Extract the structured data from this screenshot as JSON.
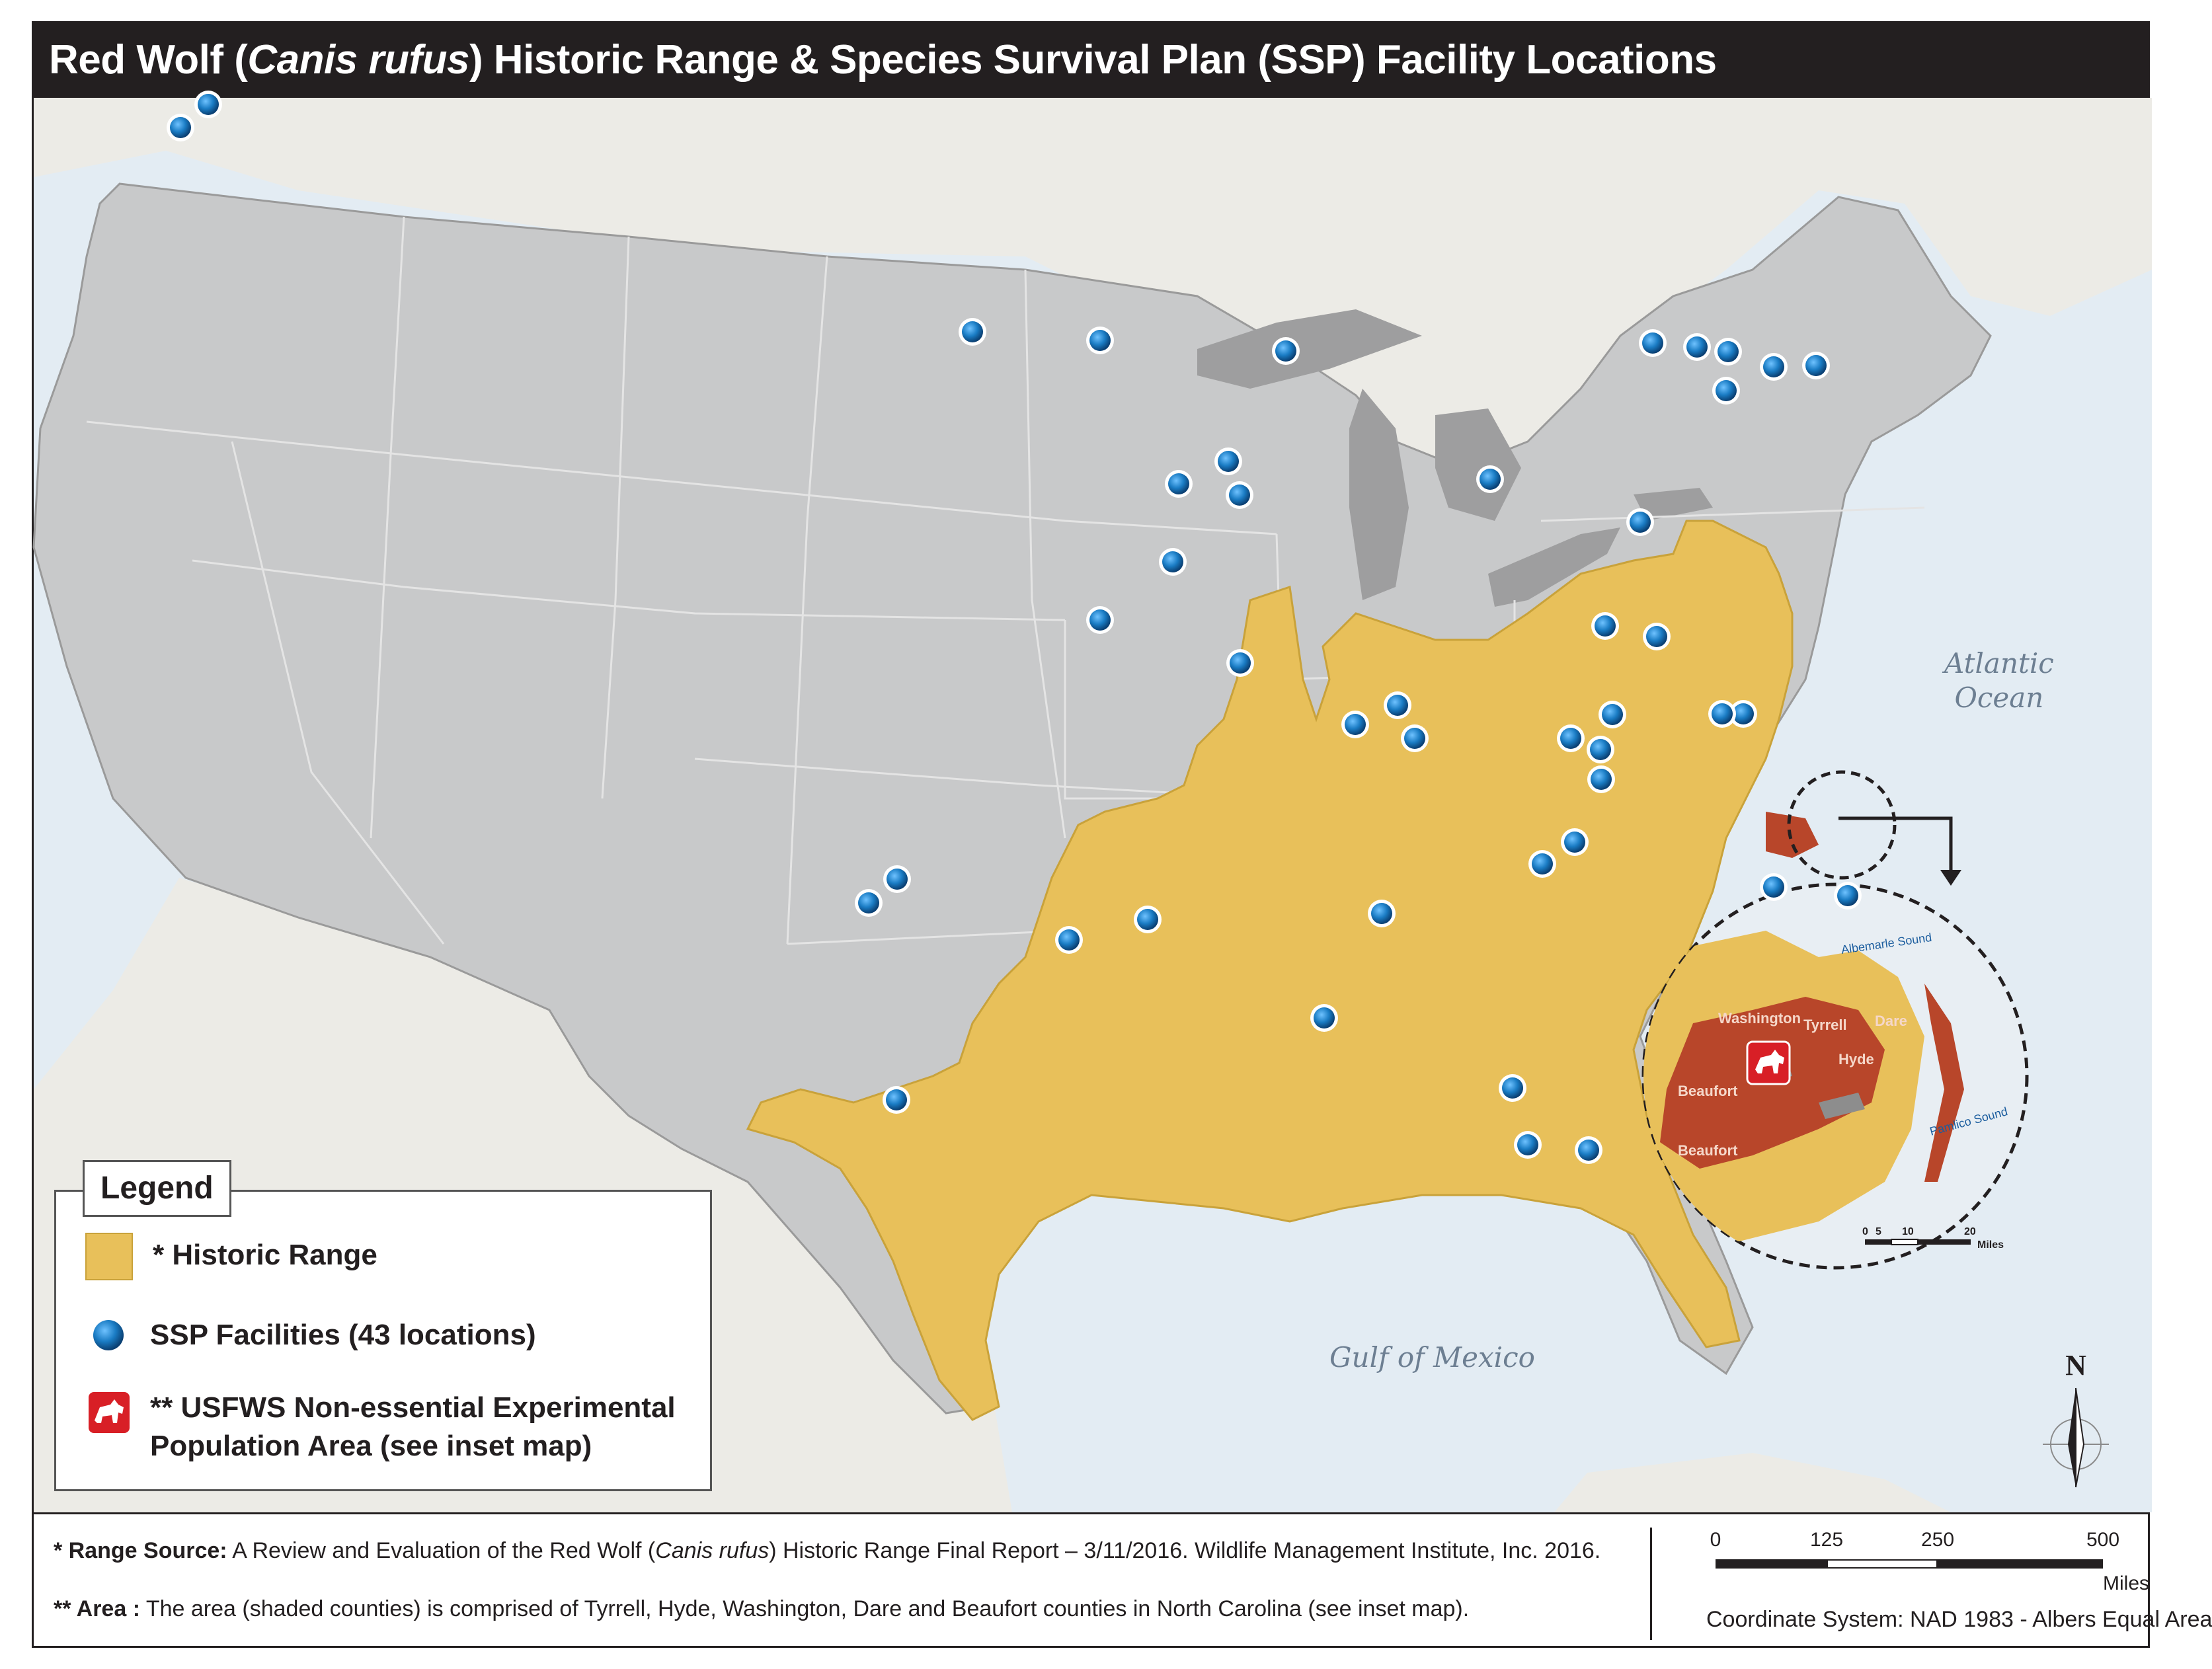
{
  "title": {
    "prefix": "Red Wolf (",
    "species": "Canis rufus",
    "suffix": ") Historic Range & Species Survival Plan (SSP) Facility Locations"
  },
  "water_labels": {
    "atlantic_line1": "Atlantic",
    "atlantic_line2": "Ocean",
    "gulf": "Gulf of Mexico"
  },
  "inset": {
    "water_labels": [
      "Albemarle Sound",
      "Pamlico Sound"
    ],
    "counties": [
      "Washington",
      "Tyrrell",
      "Dare",
      "Hyde",
      "Beaufort",
      "Beaufort"
    ],
    "scale_ticks": [
      "0",
      "5",
      "10",
      "20"
    ],
    "scale_unit": "Miles",
    "marker_icon": "wolf-icon"
  },
  "legend": {
    "title": "Legend",
    "items": [
      {
        "label": "* Historic Range",
        "swatch_color": "#e8c05a",
        "icon": "range-swatch"
      },
      {
        "label": "SSP Facilities (43 locations)",
        "swatch_color": "#1a7cc4",
        "icon": "blue-dot-icon"
      },
      {
        "label_line1": "** USFWS Non-essential Experimental",
        "label_line2": "Population Area (see inset map)",
        "swatch_color": "#d81f26",
        "icon": "wolf-icon"
      }
    ]
  },
  "footer": {
    "range_source_label": "* Range Source:",
    "range_source_text_1": " A Review and Evaluation of the Red Wolf (",
    "range_source_species": "Canis rufus",
    "range_source_text_2": ") Historic Range Final Report – 3/11/2016. Wildlife Management Institute, Inc. 2016.",
    "area_label": "** Area :",
    "area_text": " The area (shaded counties) is comprised of Tyrrell, Hyde, Washington, Dare and Beaufort counties in North Carolina (see inset map).",
    "scale_ticks": [
      "0",
      "125",
      "250",
      "500"
    ],
    "scale_unit": "Miles",
    "coordinate_system": "Coordinate System: NAD 1983 - Albers Equal Area"
  },
  "north_label": "N",
  "colors": {
    "land_us": "#c9c9c9",
    "land_other": "#ecebe6",
    "water": "#e6eef4",
    "range": "#e8c05a",
    "range_stroke": "#c9a23a",
    "facility": "#1a7cc4",
    "experimental_area": "#b8462a"
  }
}
